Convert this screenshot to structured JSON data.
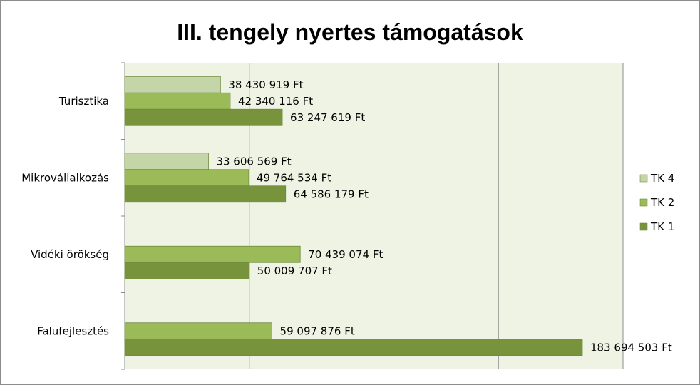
{
  "chart_data": {
    "type": "bar",
    "orientation": "horizontal",
    "title": "III. tengely nyertes támogatások",
    "categories": [
      "Turisztika",
      "Mikrovállalkozás",
      "Vidéki örökség",
      "Falufejlesztés"
    ],
    "series": [
      {
        "name": "TK 4",
        "color": "#c4d6a8",
        "values": [
          38430919,
          33606569,
          null,
          null
        ],
        "labels": [
          "38 430 919 Ft",
          "33 606 569 Ft",
          "",
          ""
        ]
      },
      {
        "name": "TK 2",
        "color": "#9bbb59",
        "values": [
          42340116,
          49764534,
          70439074,
          59097876
        ],
        "labels": [
          "42 340 116 Ft",
          "49 764 534 Ft",
          "70 439 074 Ft",
          "59 097 876 Ft"
        ]
      },
      {
        "name": "TK 1",
        "color": "#77933c",
        "values": [
          63247619,
          64586179,
          50009707,
          183694503
        ],
        "labels": [
          "63 247 619 Ft",
          "64 586 179 Ft",
          "50 009 707 Ft",
          "183 694 503 Ft"
        ]
      }
    ],
    "xlim": [
      0,
      200000000
    ],
    "x_gridlines": [
      0,
      50000000,
      100000000,
      150000000,
      200000000
    ],
    "x_tick_labels_visible": false,
    "grid": true,
    "legend_position": "right",
    "plot_background": "#eef3e4"
  }
}
